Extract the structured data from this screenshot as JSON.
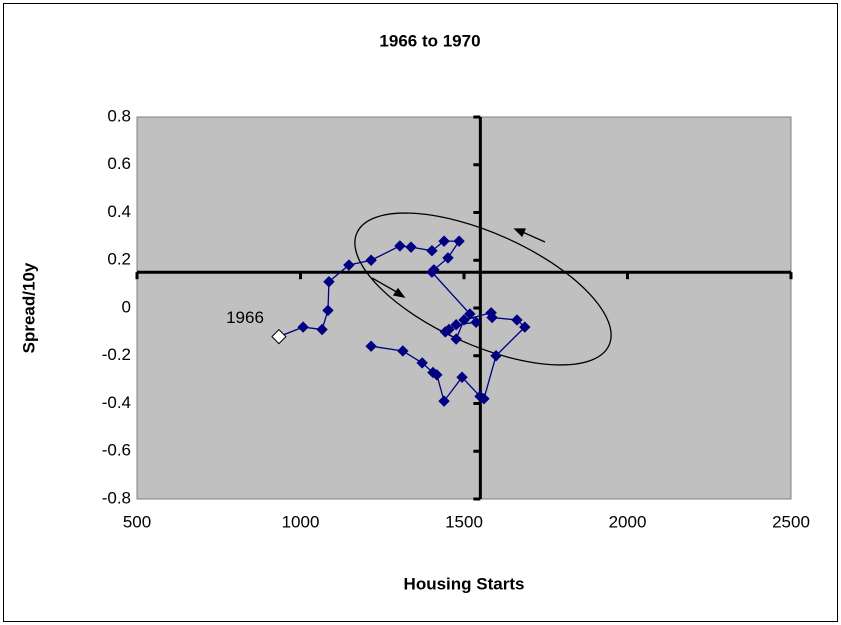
{
  "chart_data": {
    "type": "scatter",
    "title": "1966 to 1970",
    "x_label": "Housing Starts",
    "y_label": "Spread/10y",
    "xlim": [
      500,
      2500
    ],
    "xticks": [
      500,
      1000,
      1500,
      2000,
      2500
    ],
    "ylim": [
      -0.8,
      0.8
    ],
    "yticks": [
      -0.8,
      -0.6,
      -0.4,
      -0.2,
      0,
      0.2,
      0.4,
      0.6,
      0.8
    ],
    "x_axis_crosses_y": 0.15,
    "y_axis_crosses_x": 1550,
    "plot_background": "#c0c0c0",
    "series": [
      {
        "color": "#000080",
        "start_marker_color": "#ffffff",
        "x": [
          934,
          1008,
          1066,
          1084,
          1087,
          1148,
          1216,
          1304,
          1338,
          1402,
          1439,
          1485,
          1451,
          1408,
          1402,
          1518,
          1537,
          1476,
          1454,
          1443,
          1476,
          1500,
          1583,
          1586,
          1662,
          1686,
          1598,
          1561,
          1549,
          1494,
          1439,
          1417,
          1405,
          1372,
          1313,
          1216
        ],
        "y": [
          -0.12,
          -0.08,
          -0.09,
          -0.01,
          0.11,
          0.18,
          0.2,
          0.26,
          0.255,
          0.24,
          0.28,
          0.28,
          0.21,
          0.16,
          0.15,
          -0.025,
          -0.06,
          -0.07,
          -0.09,
          -0.1,
          -0.13,
          -0.05,
          -0.02,
          -0.04,
          -0.05,
          -0.08,
          -0.2,
          -0.38,
          -0.37,
          -0.29,
          -0.39,
          -0.28,
          -0.27,
          -0.23,
          -0.18,
          -0.16
        ]
      }
    ],
    "annotations": [
      {
        "text": "1966"
      }
    ]
  }
}
